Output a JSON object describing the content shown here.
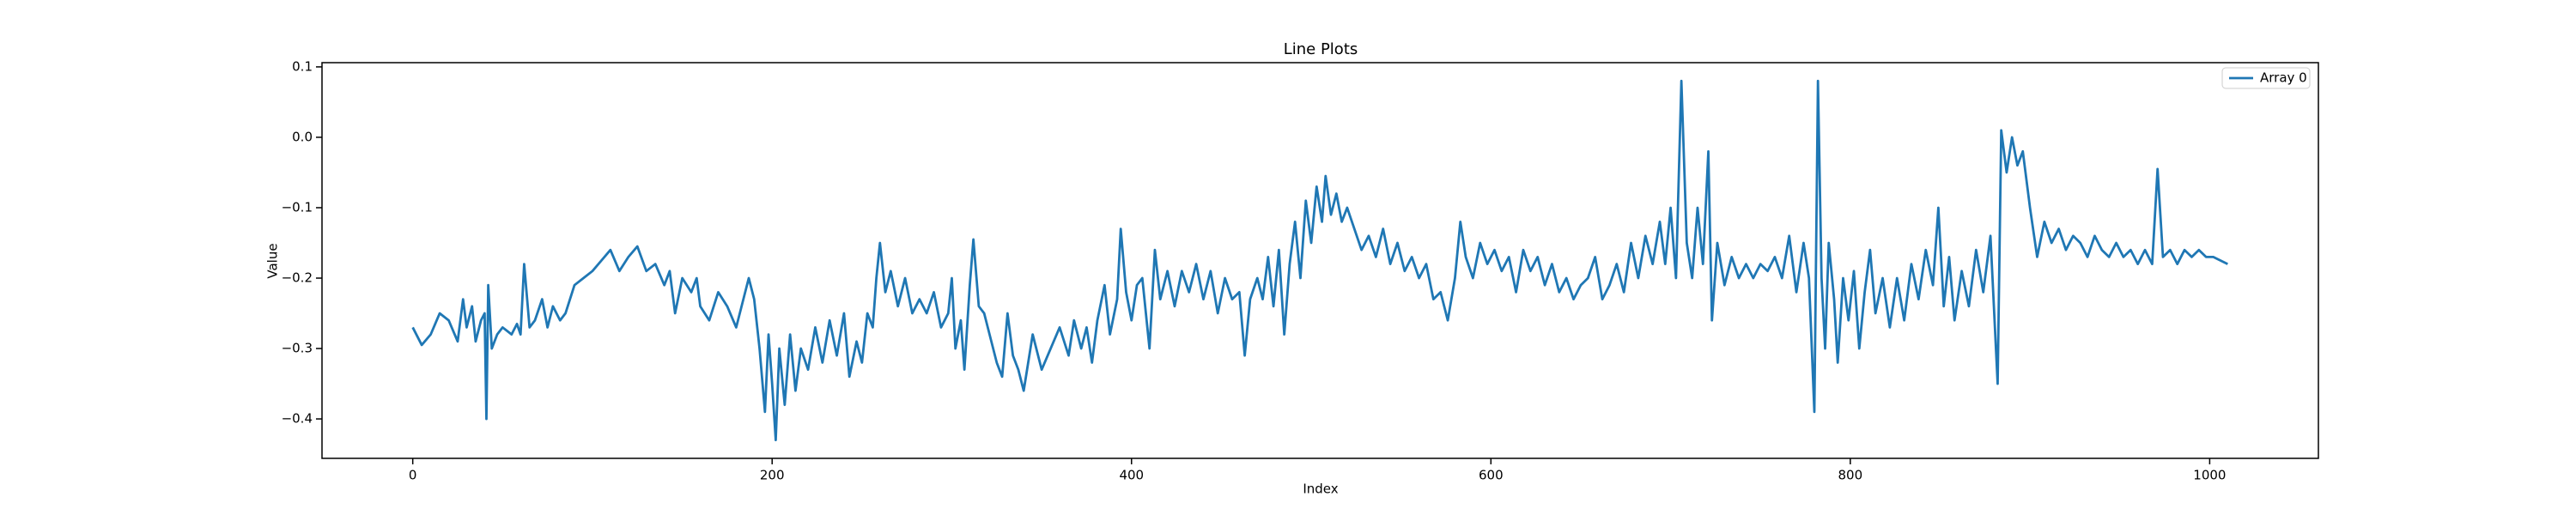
{
  "chart_data": {
    "type": "line",
    "title": "Line Plots",
    "xlabel": "Index",
    "ylabel": "Value",
    "x": [
      0,
      5,
      10,
      15,
      20,
      25,
      28,
      30,
      33,
      35,
      38,
      40,
      41,
      42,
      44,
      47,
      50,
      55,
      58,
      60,
      62,
      65,
      68,
      72,
      75,
      78,
      82,
      85,
      90,
      95,
      100,
      105,
      110,
      115,
      120,
      125,
      130,
      135,
      140,
      143,
      146,
      150,
      155,
      158,
      160,
      165,
      170,
      175,
      180,
      183,
      187,
      190,
      193,
      196,
      198,
      200,
      202,
      204,
      207,
      210,
      213,
      216,
      220,
      224,
      228,
      232,
      236,
      240,
      243,
      247,
      250,
      253,
      256,
      258,
      260,
      263,
      266,
      270,
      274,
      278,
      282,
      286,
      290,
      294,
      298,
      300,
      302,
      305,
      307,
      310,
      312,
      315,
      318,
      320,
      325,
      328,
      331,
      334,
      337,
      340,
      345,
      350,
      355,
      360,
      365,
      368,
      372,
      375,
      378,
      381,
      385,
      388,
      392,
      394,
      397,
      400,
      403,
      406,
      410,
      413,
      416,
      420,
      424,
      428,
      432,
      436,
      440,
      444,
      448,
      452,
      456,
      460,
      463,
      466,
      470,
      473,
      476,
      479,
      482,
      485,
      488,
      491,
      494,
      497,
      500,
      503,
      506,
      508,
      511,
      514,
      517,
      520,
      524,
      528,
      532,
      536,
      540,
      544,
      548,
      552,
      556,
      560,
      564,
      568,
      572,
      576,
      580,
      583,
      586,
      590,
      594,
      598,
      602,
      606,
      610,
      614,
      618,
      622,
      626,
      630,
      634,
      638,
      642,
      646,
      650,
      654,
      658,
      662,
      666,
      670,
      674,
      678,
      682,
      686,
      690,
      694,
      697,
      700,
      703,
      706,
      709,
      712,
      715,
      718,
      721,
      723,
      726,
      730,
      734,
      738,
      742,
      746,
      750,
      754,
      758,
      762,
      766,
      770,
      774,
      777,
      780,
      782,
      784,
      786,
      788,
      791,
      793,
      796,
      799,
      802,
      805,
      808,
      811,
      814,
      818,
      822,
      826,
      830,
      834,
      838,
      842,
      846,
      849,
      852,
      855,
      858,
      862,
      866,
      870,
      874,
      878,
      882,
      884,
      887,
      890,
      893,
      896,
      900,
      904,
      908,
      912,
      916,
      920,
      924,
      928,
      932,
      936,
      940,
      944,
      948,
      952,
      956,
      960,
      964,
      968,
      971,
      974,
      978,
      982,
      986,
      990,
      994,
      998,
      1002,
      1006,
      1010
    ],
    "series": [
      {
        "name": "Array 0",
        "color": "#1f77b4",
        "values": [
          -0.27,
          -0.295,
          -0.28,
          -0.25,
          -0.26,
          -0.29,
          -0.23,
          -0.27,
          -0.24,
          -0.29,
          -0.26,
          -0.25,
          -0.4,
          -0.21,
          -0.3,
          -0.28,
          -0.27,
          -0.28,
          -0.265,
          -0.28,
          -0.18,
          -0.27,
          -0.26,
          -0.23,
          -0.27,
          -0.24,
          -0.26,
          -0.25,
          -0.21,
          -0.2,
          -0.19,
          -0.175,
          -0.16,
          -0.19,
          -0.17,
          -0.155,
          -0.19,
          -0.18,
          -0.21,
          -0.19,
          -0.25,
          -0.2,
          -0.22,
          -0.2,
          -0.24,
          -0.26,
          -0.22,
          -0.24,
          -0.27,
          -0.24,
          -0.2,
          -0.23,
          -0.3,
          -0.39,
          -0.28,
          -0.35,
          -0.43,
          -0.3,
          -0.38,
          -0.28,
          -0.36,
          -0.3,
          -0.33,
          -0.27,
          -0.32,
          -0.26,
          -0.31,
          -0.25,
          -0.34,
          -0.29,
          -0.32,
          -0.25,
          -0.27,
          -0.2,
          -0.15,
          -0.22,
          -0.19,
          -0.24,
          -0.2,
          -0.25,
          -0.23,
          -0.25,
          -0.22,
          -0.27,
          -0.25,
          -0.2,
          -0.3,
          -0.26,
          -0.33,
          -0.21,
          -0.145,
          -0.24,
          -0.25,
          -0.27,
          -0.32,
          -0.34,
          -0.25,
          -0.31,
          -0.33,
          -0.36,
          -0.28,
          -0.33,
          -0.3,
          -0.27,
          -0.31,
          -0.26,
          -0.3,
          -0.27,
          -0.32,
          -0.26,
          -0.21,
          -0.28,
          -0.23,
          -0.13,
          -0.22,
          -0.26,
          -0.21,
          -0.2,
          -0.3,
          -0.16,
          -0.23,
          -0.19,
          -0.24,
          -0.19,
          -0.22,
          -0.18,
          -0.23,
          -0.19,
          -0.25,
          -0.2,
          -0.23,
          -0.22,
          -0.31,
          -0.23,
          -0.2,
          -0.23,
          -0.17,
          -0.24,
          -0.16,
          -0.28,
          -0.18,
          -0.12,
          -0.2,
          -0.09,
          -0.15,
          -0.07,
          -0.12,
          -0.055,
          -0.11,
          -0.08,
          -0.12,
          -0.1,
          -0.13,
          -0.16,
          -0.14,
          -0.17,
          -0.13,
          -0.18,
          -0.15,
          -0.19,
          -0.17,
          -0.2,
          -0.18,
          -0.23,
          -0.22,
          -0.26,
          -0.2,
          -0.12,
          -0.17,
          -0.2,
          -0.15,
          -0.18,
          -0.16,
          -0.19,
          -0.17,
          -0.22,
          -0.16,
          -0.19,
          -0.17,
          -0.21,
          -0.18,
          -0.22,
          -0.2,
          -0.23,
          -0.21,
          -0.2,
          -0.17,
          -0.23,
          -0.21,
          -0.18,
          -0.22,
          -0.15,
          -0.2,
          -0.14,
          -0.18,
          -0.12,
          -0.18,
          -0.1,
          -0.2,
          0.08,
          -0.15,
          -0.2,
          -0.1,
          -0.18,
          -0.02,
          -0.26,
          -0.15,
          -0.21,
          -0.17,
          -0.2,
          -0.18,
          -0.2,
          -0.18,
          -0.19,
          -0.17,
          -0.2,
          -0.14,
          -0.22,
          -0.15,
          -0.2,
          -0.39,
          0.08,
          -0.2,
          -0.3,
          -0.15,
          -0.23,
          -0.32,
          -0.2,
          -0.26,
          -0.19,
          -0.3,
          -0.22,
          -0.16,
          -0.25,
          -0.2,
          -0.27,
          -0.2,
          -0.26,
          -0.18,
          -0.23,
          -0.16,
          -0.21,
          -0.1,
          -0.24,
          -0.17,
          -0.26,
          -0.19,
          -0.24,
          -0.16,
          -0.22,
          -0.14,
          -0.35,
          0.01,
          -0.05,
          0.0,
          -0.04,
          -0.02,
          -0.1,
          -0.17,
          -0.12,
          -0.15,
          -0.13,
          -0.16,
          -0.14,
          -0.15,
          -0.17,
          -0.14,
          -0.16,
          -0.17,
          -0.15,
          -0.17,
          -0.16,
          -0.18,
          -0.16,
          -0.18,
          -0.045,
          -0.17,
          -0.16,
          -0.18,
          -0.16,
          -0.17,
          -0.16,
          -0.17,
          -0.17,
          -0.175,
          -0.18
        ]
      }
    ],
    "xlim": [
      -50.5,
      1060.5
    ],
    "xticks": [
      0,
      200,
      400,
      600,
      800,
      1000
    ],
    "ylim": [
      -0.456,
      0.106
    ],
    "yticks": [
      {
        "value": -0.4,
        "label": "−0.4"
      },
      {
        "value": -0.3,
        "label": "−0.3"
      },
      {
        "value": -0.2,
        "label": "−0.2"
      },
      {
        "value": -0.1,
        "label": "−0.1"
      },
      {
        "value": 0,
        "label": "0.0"
      },
      0.1
    ],
    "legend": "upper right"
  }
}
